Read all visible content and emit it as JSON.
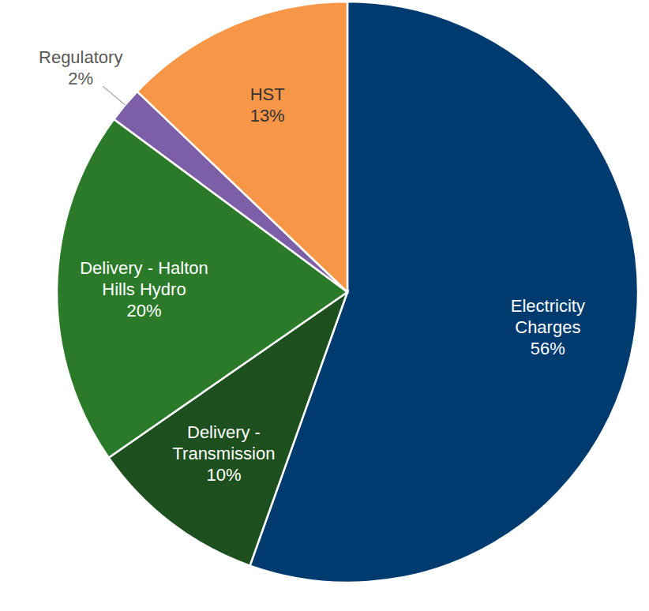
{
  "chart_data": {
    "type": "pie",
    "categories": [
      "Electricity Charges",
      "Delivery - Transmission",
      "Delivery - Halton Hills Hydro",
      "Regulatory",
      "HST"
    ],
    "values": [
      56,
      10,
      20,
      2,
      13
    ],
    "value_labels": [
      "56%",
      "10%",
      "20%",
      "2%",
      "13%"
    ],
    "colors": [
      "#003b6f",
      "#1e4f1e",
      "#2a7a2a",
      "#7d5fa8",
      "#f79646"
    ],
    "data_labels": true
  }
}
